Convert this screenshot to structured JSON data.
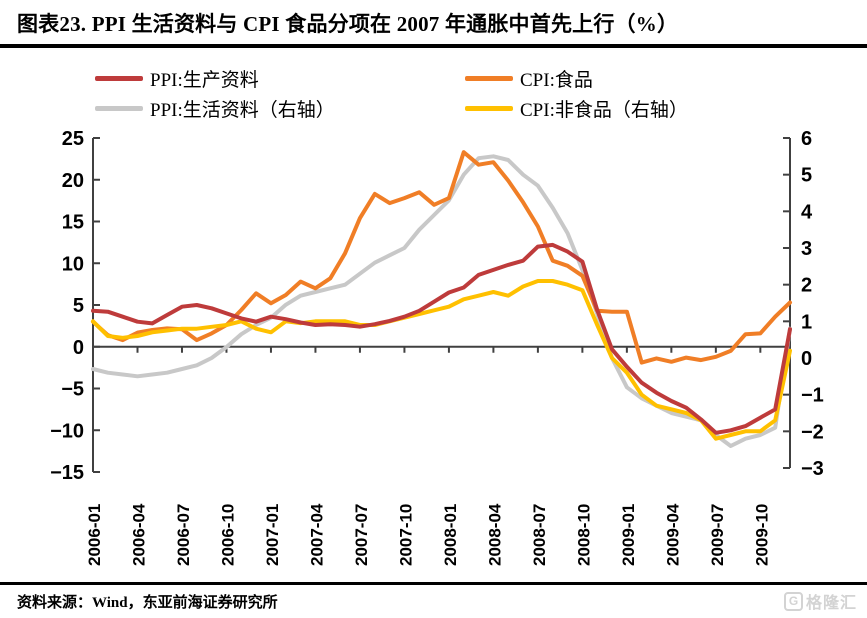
{
  "header": {
    "title": "图表23.  PPI 生活资料与 CPI 食品分项在 2007 年通胀中首先上行（%）"
  },
  "legend": [
    {
      "label": "PPI:生产资料",
      "color": "#be3b3b"
    },
    {
      "label": "CPI:食品",
      "color": "#f07e26"
    },
    {
      "label": "PPI:生活资料（右轴）",
      "color": "#c8c8c8"
    },
    {
      "label": "CPI:非食品（右轴）",
      "color": "#ffc000"
    }
  ],
  "footer": {
    "source": "资料来源：Wind，东亚前海证券研究所",
    "watermark_icon_char": "G",
    "watermark_text": "格隆汇"
  },
  "chart_data": {
    "type": "line",
    "title": "PPI 生活资料与 CPI 食品分项在 2007 年通胀中首先上行（%）",
    "grid": false,
    "legend_position": "top",
    "left_axis": {
      "min": -15,
      "max": 25,
      "step": 5
    },
    "right_axis": {
      "min": -3,
      "max": 6,
      "step": 1
    },
    "x_shown_tick_labels": [
      "2006-01",
      "2006-04",
      "2006-07",
      "2006-10",
      "2007-01",
      "2007-04",
      "2007-07",
      "2007-10",
      "2008-01",
      "2008-04",
      "2008-07",
      "2008-10",
      "2009-01",
      "2009-04",
      "2009-07",
      "2009-10"
    ],
    "x": [
      "2006-01",
      "2006-02",
      "2006-03",
      "2006-04",
      "2006-05",
      "2006-06",
      "2006-07",
      "2006-08",
      "2006-09",
      "2006-10",
      "2006-11",
      "2006-12",
      "2007-01",
      "2007-02",
      "2007-03",
      "2007-04",
      "2007-05",
      "2007-06",
      "2007-07",
      "2007-08",
      "2007-09",
      "2007-10",
      "2007-11",
      "2007-12",
      "2008-01",
      "2008-02",
      "2008-03",
      "2008-04",
      "2008-05",
      "2008-06",
      "2008-07",
      "2008-08",
      "2008-09",
      "2008-10",
      "2008-11",
      "2008-12",
      "2009-01",
      "2009-02",
      "2009-03",
      "2009-04",
      "2009-05",
      "2009-06",
      "2009-07",
      "2009-08",
      "2009-09",
      "2009-10",
      "2009-11",
      "2009-12"
    ],
    "series": [
      {
        "name": "PPI:生产资料",
        "axis": "left",
        "color": "#be3b3b",
        "values": [
          4.3,
          4.2,
          3.6,
          3.0,
          2.8,
          3.8,
          4.8,
          5.0,
          4.6,
          4.0,
          3.4,
          3.0,
          3.6,
          3.3,
          2.9,
          2.6,
          2.7,
          2.6,
          2.4,
          2.7,
          3.1,
          3.6,
          4.3,
          5.4,
          6.5,
          7.1,
          8.6,
          9.2,
          9.8,
          10.3,
          12.0,
          12.2,
          11.4,
          10.2,
          4.4,
          -0.3,
          -2.4,
          -4.3,
          -5.5,
          -6.5,
          -7.3,
          -8.7,
          -10.3,
          -10.0,
          -9.5,
          -8.5,
          -7.5,
          2.1
        ]
      },
      {
        "name": "CPI:食品",
        "axis": "left",
        "color": "#f07e26",
        "values": [
          3.0,
          1.4,
          0.8,
          1.7,
          2.0,
          2.2,
          2.1,
          0.8,
          1.6,
          2.6,
          4.4,
          6.4,
          5.2,
          6.2,
          7.8,
          7.0,
          8.2,
          11.2,
          15.4,
          18.3,
          17.2,
          17.8,
          18.5,
          17.0,
          17.8,
          23.3,
          21.8,
          22.1,
          19.9,
          17.3,
          14.4,
          10.3,
          9.7,
          8.5,
          4.3,
          4.2,
          4.2,
          -1.9,
          -1.4,
          -1.8,
          -1.3,
          -1.6,
          -1.2,
          -0.5,
          1.5,
          1.6,
          3.6,
          5.3
        ]
      },
      {
        "name": "PPI:生活资料（右轴）",
        "axis": "right",
        "color": "#c8c8c8",
        "values": [
          -0.3,
          -0.4,
          -0.45,
          -0.5,
          -0.45,
          -0.4,
          -0.3,
          -0.2,
          0.0,
          0.3,
          0.65,
          0.9,
          1.1,
          1.45,
          1.7,
          1.8,
          1.9,
          2.0,
          2.3,
          2.6,
          2.8,
          3.0,
          3.5,
          3.9,
          4.3,
          5.0,
          5.45,
          5.5,
          5.4,
          5.0,
          4.7,
          4.1,
          3.4,
          2.4,
          1.2,
          0.0,
          -0.8,
          -1.1,
          -1.3,
          -1.5,
          -1.6,
          -1.7,
          -2.1,
          -2.4,
          -2.2,
          -2.1,
          -1.9,
          0.8
        ]
      },
      {
        "name": "CPI:非食品（右轴）",
        "axis": "right",
        "color": "#ffc000",
        "values": [
          1.0,
          0.6,
          0.55,
          0.6,
          0.7,
          0.75,
          0.8,
          0.8,
          0.85,
          0.9,
          1.0,
          0.8,
          0.7,
          1.0,
          0.95,
          1.0,
          1.0,
          1.0,
          0.9,
          0.9,
          1.0,
          1.1,
          1.2,
          1.3,
          1.4,
          1.6,
          1.7,
          1.8,
          1.7,
          1.95,
          2.1,
          2.1,
          2.0,
          1.85,
          0.9,
          0.0,
          -0.4,
          -1.0,
          -1.3,
          -1.4,
          -1.5,
          -1.7,
          -2.2,
          -2.1,
          -2.0,
          -2.0,
          -1.7,
          0.2
        ]
      }
    ]
  }
}
